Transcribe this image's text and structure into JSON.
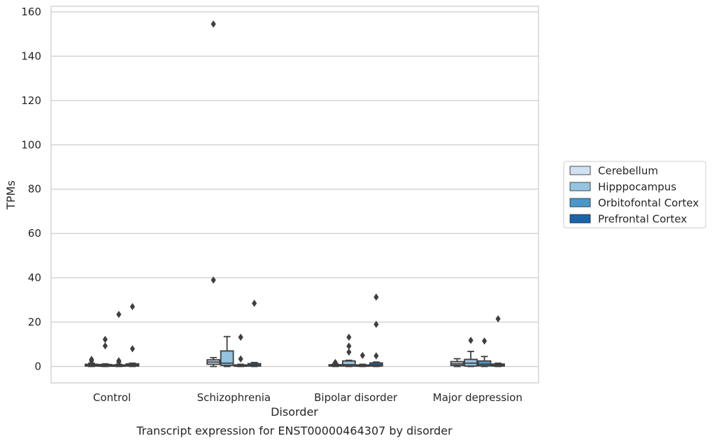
{
  "chart_data": {
    "type": "box",
    "title": "Transcript expression for ENST00000464307 by disorder",
    "xlabel": "Disorder",
    "ylabel": "TPMs",
    "ylim": [
      -7.5,
      162
    ],
    "yticks": [
      0,
      20,
      40,
      60,
      80,
      100,
      120,
      140,
      160
    ],
    "grid": true,
    "legend_position": "right",
    "categories": [
      "Control",
      "Schizophrenia",
      "Bipolar disorder",
      "Major depression"
    ],
    "series": [
      {
        "name": "Cerebellum",
        "color": "#d0e1f2",
        "boxes": [
          {
            "q1": 0.2,
            "median": 0.5,
            "q3": 1.0,
            "whisker_low": 0.0,
            "whisker_high": 1.5,
            "outliers": [
              2.5,
              3.2
            ]
          },
          {
            "q1": 1.0,
            "median": 2.0,
            "q3": 3.0,
            "whisker_low": 0.0,
            "whisker_high": 4.0,
            "outliers": [
              154.5,
              39.0
            ]
          },
          {
            "q1": 0.2,
            "median": 0.5,
            "q3": 0.8,
            "whisker_low": 0.0,
            "whisker_high": 1.2,
            "outliers": [
              1.8
            ]
          },
          {
            "q1": 0.5,
            "median": 1.2,
            "q3": 2.2,
            "whisker_low": 0.0,
            "whisker_high": 3.5,
            "outliers": []
          }
        ]
      },
      {
        "name": "Hipppocampus",
        "color": "#94c4df",
        "boxes": [
          {
            "q1": 0.1,
            "median": 0.4,
            "q3": 0.9,
            "whisker_low": 0.0,
            "whisker_high": 1.2,
            "outliers": [
              9.3,
              12.2
            ]
          },
          {
            "q1": 0.5,
            "median": 1.5,
            "q3": 7.0,
            "whisker_low": 0.0,
            "whisker_high": 13.5,
            "outliers": []
          },
          {
            "q1": 0.2,
            "median": 0.8,
            "q3": 2.5,
            "whisker_low": 0.0,
            "whisker_high": 2.8,
            "outliers": [
              6.5,
              9.2,
              13.2
            ]
          },
          {
            "q1": 0.2,
            "median": 1.5,
            "q3": 3.2,
            "whisker_low": 0.0,
            "whisker_high": 6.8,
            "outliers": [
              11.8
            ]
          }
        ]
      },
      {
        "name": "Orbitofontal Cortex",
        "color": "#4a98c9",
        "boxes": [
          {
            "q1": 0.1,
            "median": 0.3,
            "q3": 0.7,
            "whisker_low": 0.0,
            "whisker_high": 1.0,
            "outliers": [
              2.0,
              2.6,
              23.5
            ]
          },
          {
            "q1": 0.1,
            "median": 0.3,
            "q3": 0.7,
            "whisker_low": 0.0,
            "whisker_high": 1.0,
            "outliers": [
              3.4,
              13.2
            ]
          },
          {
            "q1": 0.1,
            "median": 0.3,
            "q3": 0.7,
            "whisker_low": 0.0,
            "whisker_high": 1.0,
            "outliers": [
              5.0
            ]
          },
          {
            "q1": 0.3,
            "median": 1.0,
            "q3": 2.5,
            "whisker_low": 0.0,
            "whisker_high": 4.5,
            "outliers": [
              11.5
            ]
          }
        ]
      },
      {
        "name": "Prefrontal Cortex",
        "color": "#1764ab",
        "boxes": [
          {
            "q1": 0.2,
            "median": 0.6,
            "q3": 1.2,
            "whisker_low": 0.0,
            "whisker_high": 1.5,
            "outliers": [
              8.0,
              27.0
            ]
          },
          {
            "q1": 0.2,
            "median": 0.6,
            "q3": 1.3,
            "whisker_low": 0.0,
            "whisker_high": 1.8,
            "outliers": [
              28.5
            ]
          },
          {
            "q1": 0.2,
            "median": 0.6,
            "q3": 1.6,
            "whisker_low": 0.0,
            "whisker_high": 2.0,
            "outliers": [
              4.8,
              19.0,
              31.3
            ]
          },
          {
            "q1": 0.2,
            "median": 0.5,
            "q3": 1.1,
            "whisker_low": 0.0,
            "whisker_high": 1.5,
            "outliers": [
              21.5
            ]
          }
        ]
      }
    ]
  }
}
